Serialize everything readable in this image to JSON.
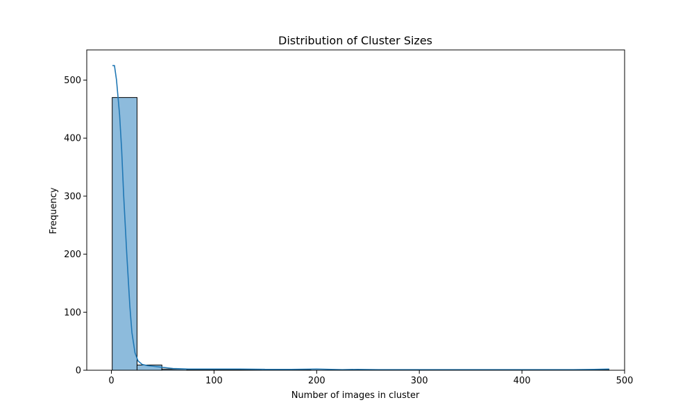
{
  "chart_data": {
    "type": "bar",
    "subtype": "histogram-with-kde",
    "title": "Distribution of Cluster Sizes",
    "xlabel": "Number of images in cluster",
    "ylabel": "Frequency",
    "xlim": [
      -24,
      500
    ],
    "ylim": [
      0,
      552
    ],
    "xticks": [
      0,
      100,
      200,
      300,
      400,
      500
    ],
    "yticks": [
      0,
      100,
      200,
      300,
      400,
      500
    ],
    "grid": false,
    "bar_color": "#8dbbdc",
    "bar_edge_color": "#000000",
    "line_color": "#1f77b4",
    "bins": [
      {
        "x0": 0.8,
        "x1": 25.0,
        "count": 470
      },
      {
        "x0": 25.0,
        "x1": 49.2,
        "count": 9
      },
      {
        "x0": 49.2,
        "x1": 73.4,
        "count": 2
      },
      {
        "x0": 73.4,
        "x1": 97.6,
        "count": 1
      },
      {
        "x0": 97.6,
        "x1": 121.8,
        "count": 1
      },
      {
        "x0": 121.8,
        "x1": 146.0,
        "count": 1
      },
      {
        "x0": 146.0,
        "x1": 170.2,
        "count": 0
      },
      {
        "x0": 170.2,
        "x1": 194.4,
        "count": 1
      },
      {
        "x0": 194.4,
        "x1": 218.6,
        "count": 0
      },
      {
        "x0": 218.6,
        "x1": 242.8,
        "count": 1
      },
      {
        "x0": 242.8,
        "x1": 267.0,
        "count": 0
      },
      {
        "x0": 267.0,
        "x1": 291.2,
        "count": 0
      },
      {
        "x0": 291.2,
        "x1": 315.4,
        "count": 0
      },
      {
        "x0": 315.4,
        "x1": 339.6,
        "count": 0
      },
      {
        "x0": 339.6,
        "x1": 363.8,
        "count": 0
      },
      {
        "x0": 363.8,
        "x1": 388.0,
        "count": 0
      },
      {
        "x0": 388.0,
        "x1": 412.2,
        "count": 0
      },
      {
        "x0": 412.2,
        "x1": 436.4,
        "count": 0
      },
      {
        "x0": 436.4,
        "x1": 460.6,
        "count": 0
      },
      {
        "x0": 460.6,
        "x1": 484.8,
        "count": 1
      }
    ],
    "kde": {
      "x": [
        1,
        3,
        5,
        8,
        10,
        12,
        15,
        18,
        20,
        23,
        26,
        30,
        35,
        40,
        50,
        60,
        75,
        100,
        125,
        150,
        175,
        200,
        225,
        240,
        260,
        300,
        350,
        400,
        450,
        470,
        485
      ],
      "y": [
        525,
        525,
        500,
        440,
        380,
        300,
        200,
        110,
        65,
        30,
        16,
        10,
        8,
        7,
        5,
        3,
        2,
        2,
        2,
        1.5,
        1.5,
        2,
        1,
        1.5,
        1,
        1,
        1,
        1,
        1,
        1.5,
        2
      ]
    }
  }
}
